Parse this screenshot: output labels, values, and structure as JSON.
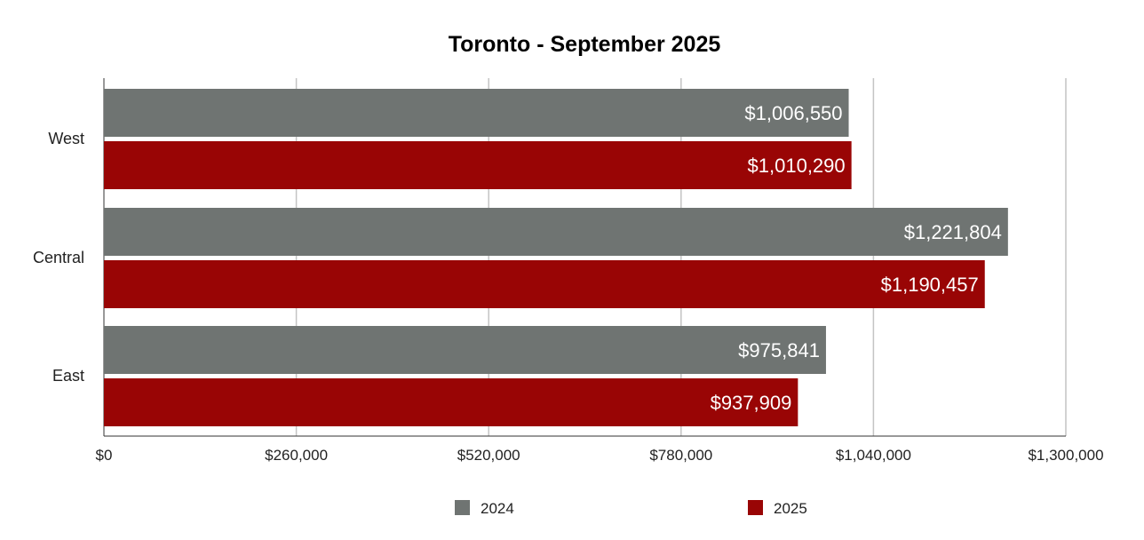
{
  "chart_data": {
    "type": "bar",
    "orientation": "horizontal",
    "title": "Toronto - September 2025",
    "categories": [
      "West",
      "Central",
      "East"
    ],
    "series": [
      {
        "name": "2024",
        "color": "#6f7472",
        "values": [
          1006550,
          1221804,
          975841
        ],
        "labels": [
          "$1,006,550",
          "$1,221,804",
          "$975,841"
        ]
      },
      {
        "name": "2025",
        "color": "#990505",
        "values": [
          1010290,
          1190457,
          937909
        ],
        "labels": [
          "$1,010,290",
          "$1,190,457",
          "$937,909"
        ]
      }
    ],
    "xlim": [
      0,
      1300000
    ],
    "xticks": [
      0,
      260000,
      520000,
      780000,
      1040000,
      1300000
    ],
    "xtick_labels": [
      "$0",
      "$260,000",
      "$520,000",
      "$780,000",
      "$1,040,000",
      "$1,300,000"
    ],
    "grid": true,
    "legend": "bottom",
    "xlabel": "",
    "ylabel": ""
  }
}
